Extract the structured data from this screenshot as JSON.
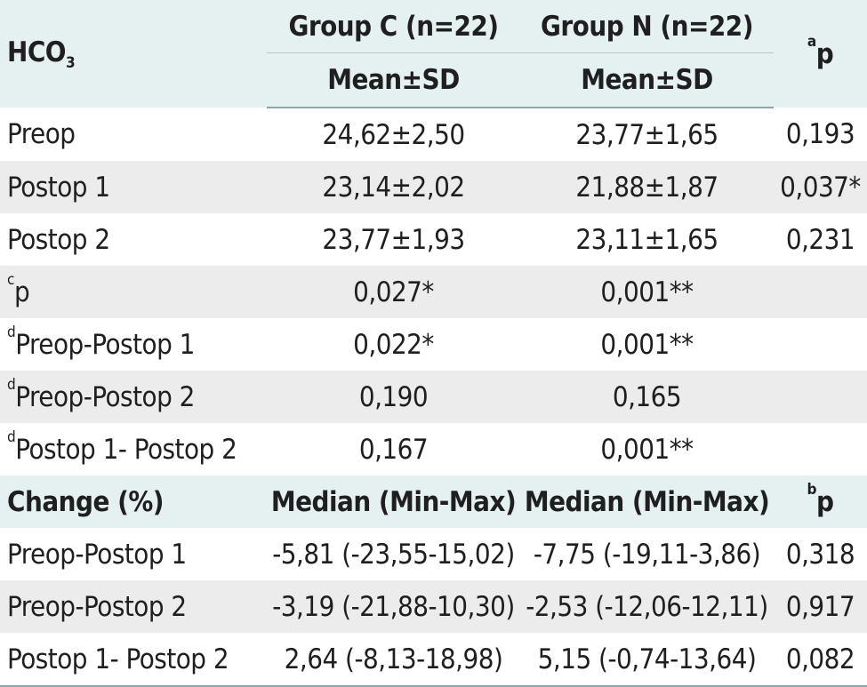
{
  "header": {
    "param_main": "HCO",
    "param_sub": "3",
    "group_c": "Group C (n=22)",
    "group_n": "Group N (n=22)",
    "stat_mean": "Mean±SD",
    "p_sup": "a",
    "p_label": "p"
  },
  "rows": [
    {
      "sup": "",
      "label": "Preop",
      "c": "24,62±2,50",
      "n": "23,77±1,65",
      "p": "0,193"
    },
    {
      "sup": "",
      "label": "Postop 1",
      "c": "23,14±2,02",
      "n": "21,88±1,87",
      "p": "0,037*"
    },
    {
      "sup": "",
      "label": "Postop 2",
      "c": "23,77±1,93",
      "n": "23,11±1,65",
      "p": "0,231"
    },
    {
      "sup": "c",
      "label": "p",
      "c": "0,027*",
      "n": "0,001**",
      "p": ""
    },
    {
      "sup": "d",
      "label": "Preop-Postop 1",
      "c": "0,022*",
      "n": "0,001**",
      "p": ""
    },
    {
      "sup": "d",
      "label": "Preop-Postop 2",
      "c": "0,190",
      "n": "0,165",
      "p": ""
    },
    {
      "sup": "d",
      "label": "Postop 1- Postop 2",
      "c": "0,167",
      "n": "0,001**",
      "p": ""
    }
  ],
  "change_header": {
    "label": "Change (%)",
    "col_c": "Median (Min-Max)",
    "col_n": "Median (Min-Max)",
    "p_sup": "b",
    "p_label": "p"
  },
  "change_rows": [
    {
      "label": "Preop-Postop 1",
      "c": "-5,81 (-23,55-15,02)",
      "n": "-7,75 (-19,11-3,86)",
      "p": "0,318"
    },
    {
      "label": "Preop-Postop 2",
      "c": "-3,19 (-21,88-10,30)",
      "n": "-2,53 (-12,06-12,11)",
      "p": "0,917"
    },
    {
      "label": "Postop 1- Postop 2",
      "c": "2,64 (-8,13-18,98)",
      "n": "5,15 (-0,74-13,64)",
      "p": "0,082"
    }
  ]
}
